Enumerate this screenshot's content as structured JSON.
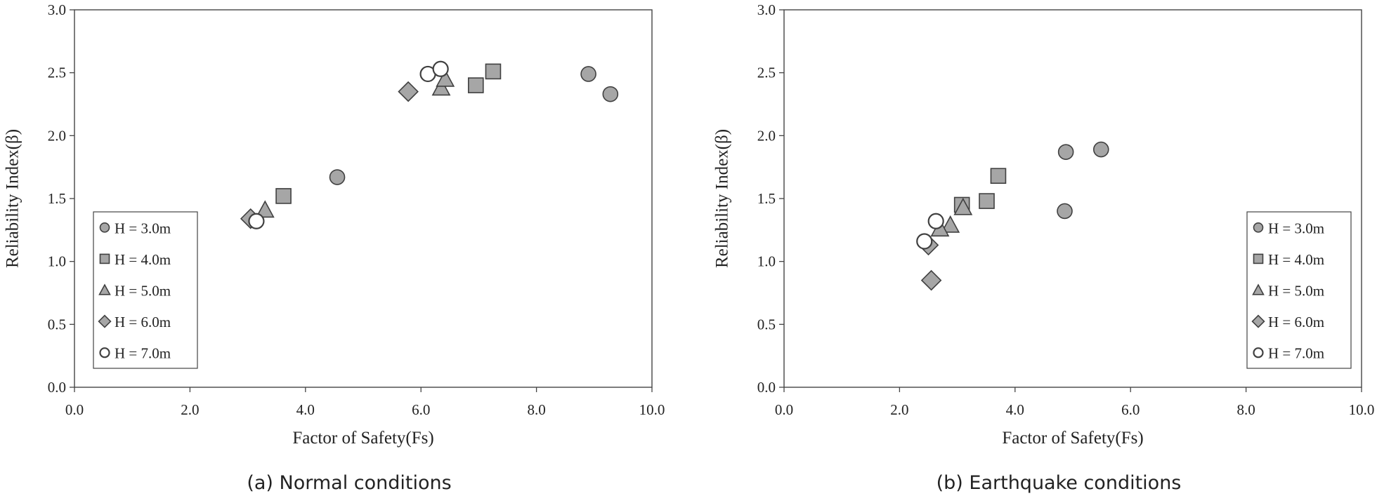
{
  "chart_data": [
    {
      "type": "scatter",
      "caption": "(a) Normal conditions",
      "xlabel": "Factor of Safety(Fs)",
      "ylabel": "Reliability Index(β)",
      "xlim": [
        0,
        10
      ],
      "ylim": [
        0,
        3
      ],
      "x_ticks": [
        "0.0",
        "2.0",
        "4.0",
        "6.0",
        "8.0",
        "10.0"
      ],
      "y_ticks": [
        "0.0",
        "0.5",
        "1.0",
        "1.5",
        "2.0",
        "2.5",
        "3.0"
      ],
      "grid": false,
      "legend_position": "bottom-left",
      "series": [
        {
          "name": "H = 3.0m",
          "marker": "circle",
          "color": "#a6a6a6",
          "points": [
            [
              4.55,
              1.67
            ],
            [
              8.9,
              2.49
            ],
            [
              9.28,
              2.33
            ]
          ]
        },
        {
          "name": "H = 4.0m",
          "marker": "square",
          "color": "#a6a6a6",
          "points": [
            [
              3.62,
              1.52
            ],
            [
              6.95,
              2.4
            ],
            [
              7.25,
              2.51
            ]
          ]
        },
        {
          "name": "H = 5.0m",
          "marker": "triangle",
          "color": "#a6a6a6",
          "points": [
            [
              3.3,
              1.41
            ],
            [
              6.35,
              2.38
            ],
            [
              6.42,
              2.45
            ]
          ]
        },
        {
          "name": "H = 6.0m",
          "marker": "diamond",
          "color": "#a6a6a6",
          "points": [
            [
              3.05,
              1.34
            ],
            [
              5.78,
              2.35
            ]
          ]
        },
        {
          "name": "H = 7.0m",
          "marker": "open-circle",
          "color": "#ffffff",
          "points": [
            [
              3.15,
              1.32
            ],
            [
              6.12,
              2.49
            ],
            [
              6.34,
              2.53
            ]
          ]
        }
      ]
    },
    {
      "type": "scatter",
      "caption": "(b) Earthquake conditions",
      "xlabel": "Factor of Safety(Fs)",
      "ylabel": "Reliability Index(β)",
      "xlim": [
        0,
        10
      ],
      "ylim": [
        0,
        3
      ],
      "x_ticks": [
        "0.0",
        "2.0",
        "4.0",
        "6.0",
        "8.0",
        "10.0"
      ],
      "y_ticks": [
        "0.0",
        "0.5",
        "1.0",
        "1.5",
        "2.0",
        "2.5",
        "3.0"
      ],
      "grid": false,
      "legend_position": "bottom-right",
      "series": [
        {
          "name": "H = 3.0m",
          "marker": "circle",
          "color": "#a6a6a6",
          "points": [
            [
              4.88,
              1.87
            ],
            [
              5.49,
              1.89
            ],
            [
              4.86,
              1.4
            ]
          ]
        },
        {
          "name": "H = 4.0m",
          "marker": "square",
          "color": "#a6a6a6",
          "points": [
            [
              3.71,
              1.68
            ],
            [
              3.51,
              1.48
            ],
            [
              3.08,
              1.45
            ]
          ]
        },
        {
          "name": "H = 5.0m",
          "marker": "triangle",
          "color": "#a6a6a6",
          "points": [
            [
              3.1,
              1.43
            ],
            [
              2.88,
              1.29
            ],
            [
              2.7,
              1.26
            ]
          ]
        },
        {
          "name": "H = 6.0m",
          "marker": "diamond",
          "color": "#a6a6a6",
          "points": [
            [
              2.55,
              0.85
            ],
            [
              2.5,
              1.13
            ]
          ]
        },
        {
          "name": "H = 7.0m",
          "marker": "open-circle",
          "color": "#ffffff",
          "points": [
            [
              2.43,
              1.16
            ],
            [
              2.63,
              1.32
            ]
          ]
        }
      ]
    }
  ]
}
